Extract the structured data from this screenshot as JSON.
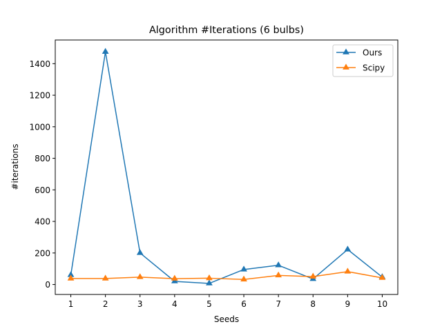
{
  "chart_data": {
    "type": "line",
    "title": "Algorithm #Iterations (6 bulbs)",
    "xlabel": "Seeds",
    "ylabel": "#iterations",
    "x": [
      1,
      2,
      3,
      4,
      5,
      6,
      7,
      8,
      9,
      10
    ],
    "xlim": [
      0.55,
      10.45
    ],
    "ylim": [
      -63,
      1550
    ],
    "yticks": [
      0,
      200,
      400,
      600,
      800,
      1000,
      1200,
      1400
    ],
    "grid": false,
    "legend_position": "top-right",
    "marker": "triangle-up",
    "series": [
      {
        "name": "Ours",
        "color": "#1f77b4",
        "values": [
          60,
          1475,
          200,
          20,
          7,
          95,
          122,
          35,
          222,
          47
        ]
      },
      {
        "name": "Scipy",
        "color": "#ff7f0e",
        "values": [
          38,
          38,
          47,
          37,
          40,
          32,
          58,
          50,
          82,
          42
        ]
      }
    ]
  }
}
